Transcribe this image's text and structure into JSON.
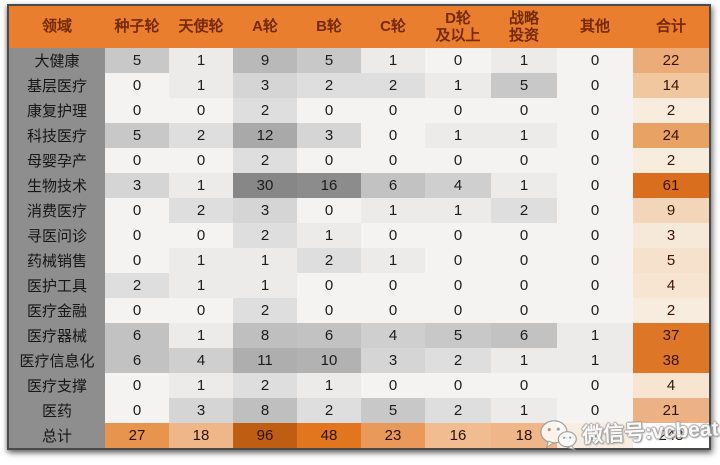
{
  "chart_data": {
    "type": "table",
    "columns": [
      "领域",
      "种子轮",
      "天使轮",
      "A轮",
      "B轮",
      "C轮",
      "D轮\n及以上",
      "战略\n投资",
      "其他",
      "合计"
    ],
    "rows": [
      {
        "label": "大健康",
        "values": [
          5,
          1,
          9,
          5,
          1,
          0,
          1,
          0
        ],
        "total": 22
      },
      {
        "label": "基层医疗",
        "values": [
          0,
          1,
          3,
          2,
          2,
          1,
          5,
          0
        ],
        "total": 14
      },
      {
        "label": "康复护理",
        "values": [
          0,
          0,
          2,
          0,
          0,
          0,
          0,
          0
        ],
        "total": 2
      },
      {
        "label": "科技医疗",
        "values": [
          5,
          2,
          12,
          3,
          0,
          1,
          1,
          0
        ],
        "total": 24
      },
      {
        "label": "母婴孕产",
        "values": [
          0,
          0,
          2,
          0,
          0,
          0,
          0,
          0
        ],
        "total": 2
      },
      {
        "label": "生物技术",
        "values": [
          3,
          1,
          30,
          16,
          6,
          4,
          1,
          0
        ],
        "total": 61
      },
      {
        "label": "消费医疗",
        "values": [
          0,
          2,
          3,
          0,
          1,
          1,
          2,
          0
        ],
        "total": 9
      },
      {
        "label": "寻医问诊",
        "values": [
          0,
          0,
          2,
          1,
          0,
          0,
          0,
          0
        ],
        "total": 3
      },
      {
        "label": "药械销售",
        "values": [
          0,
          1,
          1,
          2,
          1,
          0,
          0,
          0
        ],
        "total": 5
      },
      {
        "label": "医护工具",
        "values": [
          2,
          1,
          1,
          0,
          0,
          0,
          0,
          0
        ],
        "total": 4
      },
      {
        "label": "医疗金融",
        "values": [
          0,
          0,
          2,
          0,
          0,
          0,
          0,
          0
        ],
        "total": 2
      },
      {
        "label": "医疗器械",
        "values": [
          6,
          1,
          8,
          6,
          4,
          5,
          6,
          1
        ],
        "total": 37
      },
      {
        "label": "医疗信息化",
        "values": [
          6,
          4,
          11,
          10,
          3,
          2,
          1,
          1
        ],
        "total": 38
      },
      {
        "label": "医疗支撑",
        "values": [
          0,
          1,
          2,
          1,
          0,
          0,
          0,
          0
        ],
        "total": 4
      },
      {
        "label": "医药",
        "values": [
          0,
          3,
          8,
          2,
          5,
          2,
          1,
          0
        ],
        "total": 21
      }
    ],
    "grand_total_row": {
      "label": "总计",
      "values": [
        27,
        18,
        96,
        48,
        23,
        16,
        18,
        2
      ],
      "total": 248
    },
    "legend_position": "none",
    "grid": false
  },
  "watermark": {
    "text": "微信号:vcbeat",
    "icon": "wechat-icon"
  },
  "colors": {
    "header_bg": "#E87E2E",
    "header_text": "#772A08",
    "label_column_bg": "#8E8E8E",
    "body_text": "#1C1C1C",
    "gray_scale_max": "#878787",
    "total_column_max": "#D96E1F",
    "grand_row_max": "#BF5E12",
    "frame_border": "#4A4A4A"
  }
}
